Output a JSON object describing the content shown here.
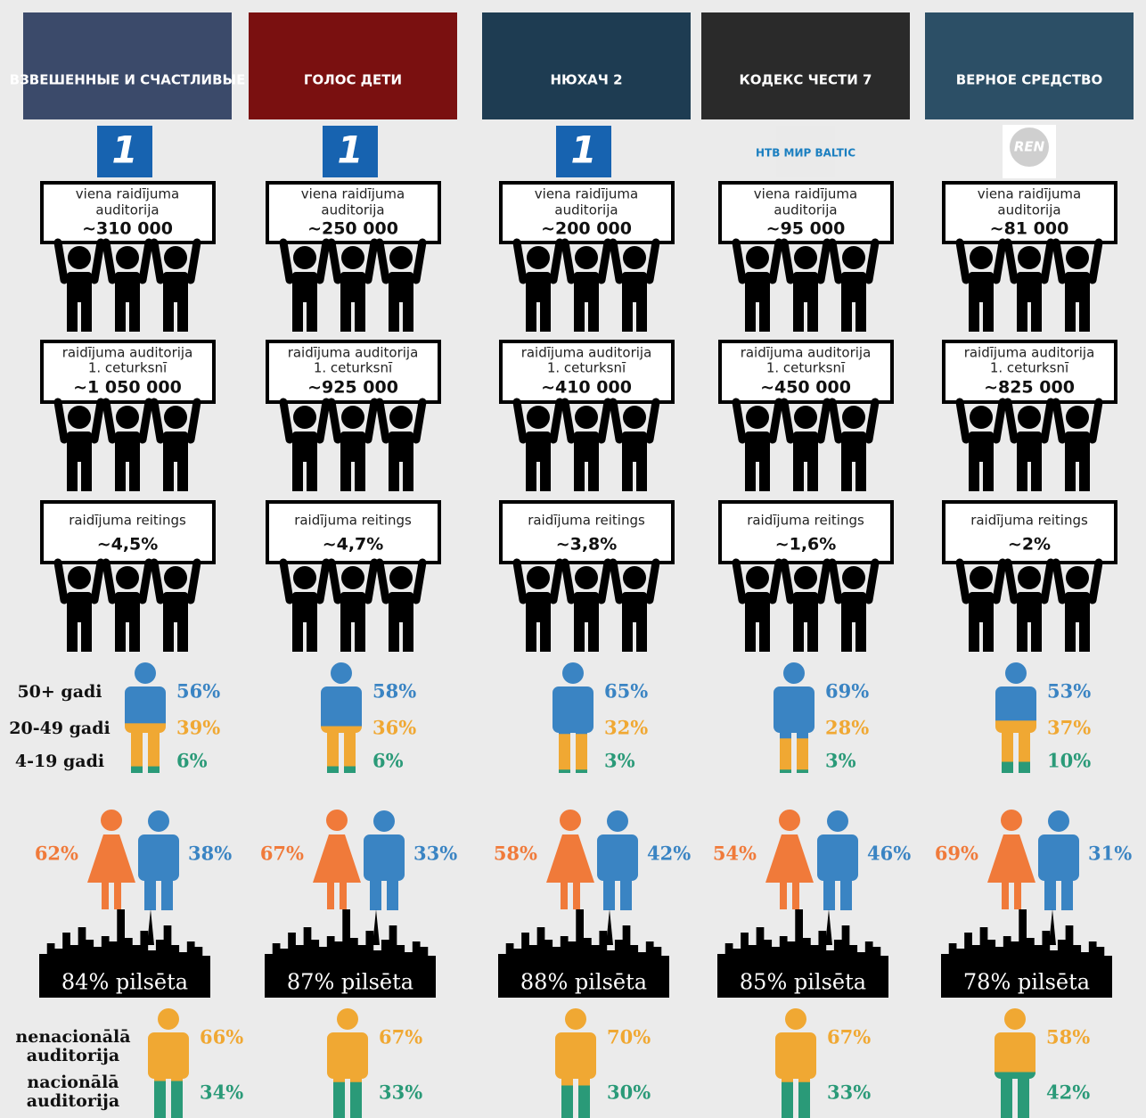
{
  "labels": {
    "box1": [
      "viena raidījuma",
      "auditorija"
    ],
    "box2": [
      "raidījuma auditorija",
      "1. ceturksnī"
    ],
    "box3": [
      "raidījuma reitings"
    ],
    "ages": [
      "50+ gadi",
      "20-49 gadi",
      "4-19 gadi"
    ],
    "nationality": [
      [
        "nenacionālā",
        "auditorija"
      ],
      [
        "nacionālā",
        "auditorija"
      ]
    ]
  },
  "colors": {
    "ages": [
      "#3a84c3",
      "#f0a833",
      "#2a9a78"
    ],
    "female": "#f07a3a",
    "male": "#3a84c3",
    "nationality": [
      "#f0a833",
      "#2a9a78"
    ]
  },
  "shows": [
    {
      "poster": "ВЗВЕШЕННЫЕ И СЧАСТЛИВЫЕ",
      "channel": "1",
      "audience": "~310 000",
      "quarter": "~1 050 000",
      "rating": "~4,5%",
      "age": {
        "values": [
          56,
          39,
          6
        ],
        "labels": [
          "56%",
          "39%",
          "6%"
        ]
      },
      "female": "62%",
      "male": "38%",
      "urban": "84% pilsēta",
      "nationality": {
        "values": [
          66,
          34
        ],
        "labels": [
          "66%",
          "34%"
        ]
      }
    },
    {
      "poster": "ГОЛОС ДЕТИ",
      "channel": "1",
      "audience": "~250 000",
      "quarter": "~925 000",
      "rating": "~4,7%",
      "age": {
        "values": [
          58,
          36,
          6
        ],
        "labels": [
          "58%",
          "36%",
          "6%"
        ]
      },
      "female": "67%",
      "male": "33%",
      "urban": "87% pilsēta",
      "nationality": {
        "values": [
          67,
          33
        ],
        "labels": [
          "67%",
          "33%"
        ]
      }
    },
    {
      "poster": "НЮХАЧ 2",
      "channel": "1",
      "audience": "~200 000",
      "quarter": "~410 000",
      "rating": "~3,8%",
      "age": {
        "values": [
          65,
          32,
          3
        ],
        "labels": [
          "65%",
          "32%",
          "3%"
        ]
      },
      "female": "58%",
      "male": "42%",
      "urban": "88% pilsēta",
      "nationality": {
        "values": [
          70,
          30
        ],
        "labels": [
          "70%",
          "30%"
        ]
      }
    },
    {
      "poster": "КОДЕКС ЧЕСТИ 7",
      "channel": "НТВ МИР BALTIC",
      "audience": "~95 000",
      "quarter": "~450 000",
      "rating": "~1,6%",
      "age": {
        "values": [
          69,
          28,
          3
        ],
        "labels": [
          "69%",
          "28%",
          "3%"
        ]
      },
      "female": "54%",
      "male": "46%",
      "urban": "85% pilsēta",
      "nationality": {
        "values": [
          67,
          33
        ],
        "labels": [
          "67%",
          "33%"
        ]
      }
    },
    {
      "poster": "ВЕРНОЕ СРЕДСТВО",
      "channel": "REN",
      "audience": "~81 000",
      "quarter": "~825 000",
      "rating": "~2%",
      "age": {
        "values": [
          53,
          37,
          10
        ],
        "labels": [
          "53%",
          "37%",
          "10%"
        ]
      },
      "female": "69%",
      "male": "31%",
      "urban": "78% pilsēta",
      "nationality": {
        "values": [
          58,
          42
        ],
        "labels": [
          "58%",
          "42%"
        ]
      }
    }
  ]
}
